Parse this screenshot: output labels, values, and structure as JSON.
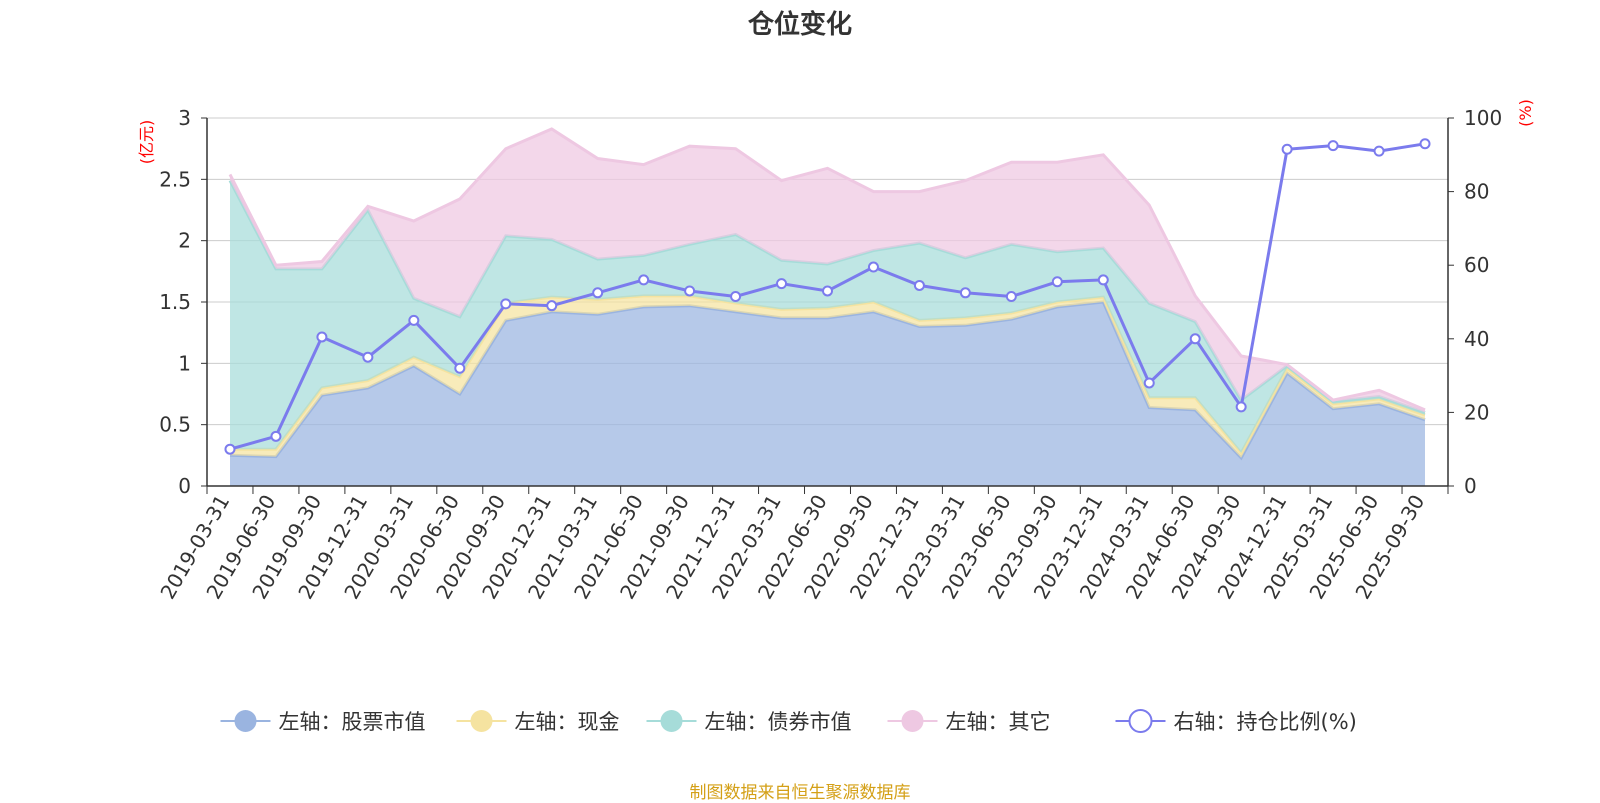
{
  "chart_data": {
    "type": "area",
    "title": "仓位变化",
    "source_note": "制图数据来自恒生聚源数据库",
    "categories": [
      "2019-03-31",
      "2019-06-30",
      "2019-09-30",
      "2019-12-31",
      "2020-03-31",
      "2020-06-30",
      "2020-09-30",
      "2020-12-31",
      "2021-03-31",
      "2021-06-30",
      "2021-09-30",
      "2021-12-31",
      "2022-03-31",
      "2022-06-30",
      "2022-09-30",
      "2022-12-31",
      "2023-03-31",
      "2023-06-30",
      "2023-09-30",
      "2023-12-31",
      "2024-03-31",
      "2024-06-30",
      "2024-09-30",
      "2024-12-31",
      "2025-03-31",
      "2025-06-30",
      "2025-09-30"
    ],
    "y_left": {
      "unit_label": "(亿元)",
      "min": 0,
      "max": 3,
      "ticks": [
        "0",
        "0.5",
        "1",
        "1.5",
        "2",
        "2.5",
        "3"
      ]
    },
    "y_right": {
      "unit_label": "(%)",
      "min": 0,
      "max": 100,
      "ticks": [
        "0",
        "20",
        "40",
        "60",
        "80",
        "100"
      ]
    },
    "grid": true,
    "legend_position": "bottom",
    "stacked": true,
    "series": [
      {
        "name": "左轴：股票市值",
        "axis": "left",
        "kind": "area",
        "color": "#9ab4e0",
        "values": [
          0.25,
          0.24,
          0.74,
          0.8,
          0.98,
          0.75,
          1.35,
          1.42,
          1.4,
          1.46,
          1.47,
          1.42,
          1.37,
          1.37,
          1.42,
          1.3,
          1.31,
          1.36,
          1.46,
          1.5,
          0.64,
          0.62,
          0.23,
          0.92,
          0.63,
          0.67,
          0.54
        ]
      },
      {
        "name": "左轴：现金",
        "axis": "left",
        "kind": "area",
        "color": "#f5e3a0",
        "values": [
          0.05,
          0.06,
          0.06,
          0.06,
          0.07,
          0.14,
          0.14,
          0.12,
          0.12,
          0.09,
          0.08,
          0.07,
          0.07,
          0.08,
          0.08,
          0.05,
          0.06,
          0.05,
          0.04,
          0.04,
          0.08,
          0.1,
          0.04,
          0.04,
          0.04,
          0.04,
          0.04
        ]
      },
      {
        "name": "左轴：债券市值",
        "axis": "left",
        "kind": "area",
        "color": "#a6dcd9",
        "values": [
          2.19,
          1.47,
          0.97,
          1.39,
          0.48,
          0.49,
          0.55,
          0.47,
          0.33,
          0.33,
          0.42,
          0.56,
          0.4,
          0.36,
          0.42,
          0.63,
          0.49,
          0.56,
          0.41,
          0.4,
          0.77,
          0.62,
          0.43,
          0.02,
          0.02,
          0.02,
          0.02
        ]
      },
      {
        "name": "左轴：其它",
        "axis": "left",
        "kind": "area",
        "color": "#eec8e2",
        "values": [
          0.05,
          0.03,
          0.06,
          0.03,
          0.63,
          0.96,
          0.71,
          0.9,
          0.82,
          0.74,
          0.8,
          0.7,
          0.65,
          0.78,
          0.48,
          0.42,
          0.63,
          0.67,
          0.73,
          0.76,
          0.8,
          0.21,
          0.36,
          0.01,
          0.01,
          0.05,
          0.02
        ]
      },
      {
        "name": "右轴：持仓比例(%)",
        "axis": "right",
        "kind": "line",
        "color": "#7b7bed",
        "values": [
          10,
          13.5,
          40.5,
          35,
          45,
          32,
          49.5,
          49,
          52.5,
          56,
          53,
          51.5,
          55,
          53,
          59.5,
          54.5,
          52.5,
          51.5,
          55.5,
          56,
          28,
          40,
          21.5,
          91.5,
          92.5,
          91,
          93
        ]
      }
    ]
  }
}
